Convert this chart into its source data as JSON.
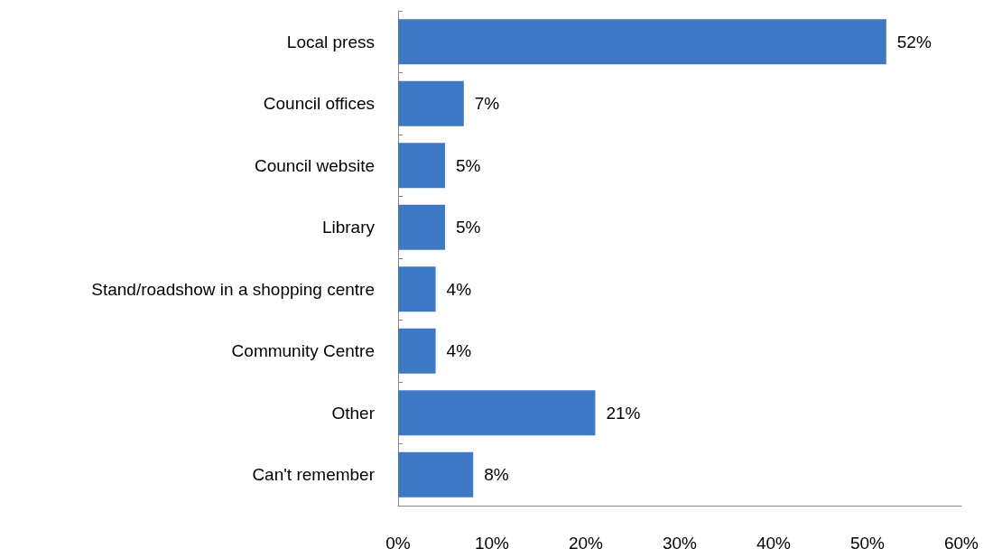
{
  "chart_data": {
    "type": "bar",
    "orientation": "horizontal",
    "categories": [
      "Local press",
      "Council offices",
      "Council website",
      "Library",
      "Stand/roadshow in a shopping centre",
      "Community Centre",
      "Other",
      "Can't remember"
    ],
    "values": [
      52,
      7,
      5,
      5,
      4,
      4,
      21,
      8
    ],
    "value_labels": [
      "52%",
      "7%",
      "5%",
      "5%",
      "4%",
      "4%",
      "21%",
      "8%"
    ],
    "color": "#3f78c4",
    "xlim": [
      0,
      60
    ],
    "xticks": [
      {
        "value": 0,
        "label": "0%"
      },
      {
        "value": 10,
        "label": "10%"
      },
      {
        "value": 20,
        "label": "20%"
      },
      {
        "value": 30,
        "label": "30%"
      },
      {
        "value": 40,
        "label": "40%"
      },
      {
        "value": 50,
        "label": "50%"
      },
      {
        "value": 60,
        "label": "60%"
      }
    ],
    "grid": false
  }
}
